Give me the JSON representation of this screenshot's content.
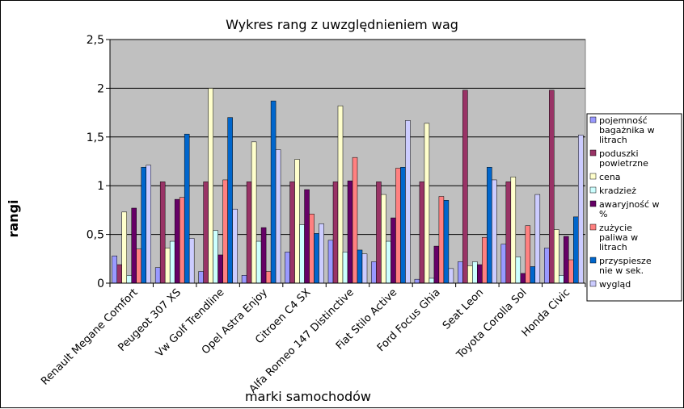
{
  "chart_data": {
    "type": "bar",
    "title": "Wykres rang z uwzględnieniem wag",
    "xlabel": "marki samochodów",
    "ylabel": "rangi",
    "ylim": [
      0,
      2.5
    ],
    "yticks": [
      "0",
      "0,5",
      "1",
      "1,5",
      "2",
      "2,5"
    ],
    "ytick_values": [
      0,
      0.5,
      1,
      1.5,
      2,
      2.5
    ],
    "grid": true,
    "legend_position": "right",
    "categories": [
      "Renault Megane Comfort",
      "Peugeot 307 XS",
      "Vw Golf Trendline",
      "Opel Astra Enjoy",
      "Citroen C4 SX",
      "Alfa Romeo 147 Distinctive",
      "Fiat Stilo Active",
      "Ford Focus Ghia",
      "Seat Leon",
      "Toyota Corolla Sol",
      "Honda Civic"
    ],
    "series": [
      {
        "name": "pojemność bagażnika w litrach",
        "color": "#9999ff",
        "values": [
          0.28,
          0.16,
          0.12,
          0.08,
          0.32,
          0.44,
          0.22,
          0.04,
          0.22,
          0.4,
          0.36
        ]
      },
      {
        "name": "poduszki powietrzne",
        "color": "#993366",
        "values": [
          0.19,
          1.04,
          1.04,
          1.04,
          1.04,
          1.04,
          1.04,
          1.04,
          1.98,
          1.04,
          1.98
        ]
      },
      {
        "name": "cena",
        "color": "#ffffcc",
        "values": [
          0.73,
          0.36,
          2.0,
          1.45,
          1.27,
          1.82,
          0.91,
          1.64,
          0.18,
          1.09,
          0.55
        ]
      },
      {
        "name": "kradzież",
        "color": "#ccffff",
        "values": [
          0.08,
          0.43,
          0.54,
          0.43,
          0.6,
          0.32,
          0.43,
          0.05,
          0.22,
          0.27,
          0.08
        ]
      },
      {
        "name": "awaryjność w %",
        "color": "#660066",
        "values": [
          0.77,
          0.86,
          0.29,
          0.57,
          0.96,
          1.05,
          0.67,
          0.38,
          0.19,
          0.1,
          0.48
        ]
      },
      {
        "name": "zużycie paliwa w litrach",
        "color": "#ff8080",
        "values": [
          0.35,
          0.88,
          1.06,
          0.12,
          0.71,
          1.29,
          1.18,
          0.89,
          0.47,
          0.59,
          0.24
        ]
      },
      {
        "name": "przyspiesze nie w sek.",
        "color": "#0066cc",
        "values": [
          1.19,
          1.53,
          1.7,
          1.87,
          0.51,
          0.34,
          1.19,
          0.85,
          1.19,
          0.17,
          0.68
        ]
      },
      {
        "name": "wygląd",
        "color": "#ccccff",
        "values": [
          1.21,
          0.46,
          0.76,
          1.37,
          0.61,
          0.3,
          1.67,
          0.15,
          1.06,
          0.91,
          1.52
        ]
      }
    ]
  }
}
